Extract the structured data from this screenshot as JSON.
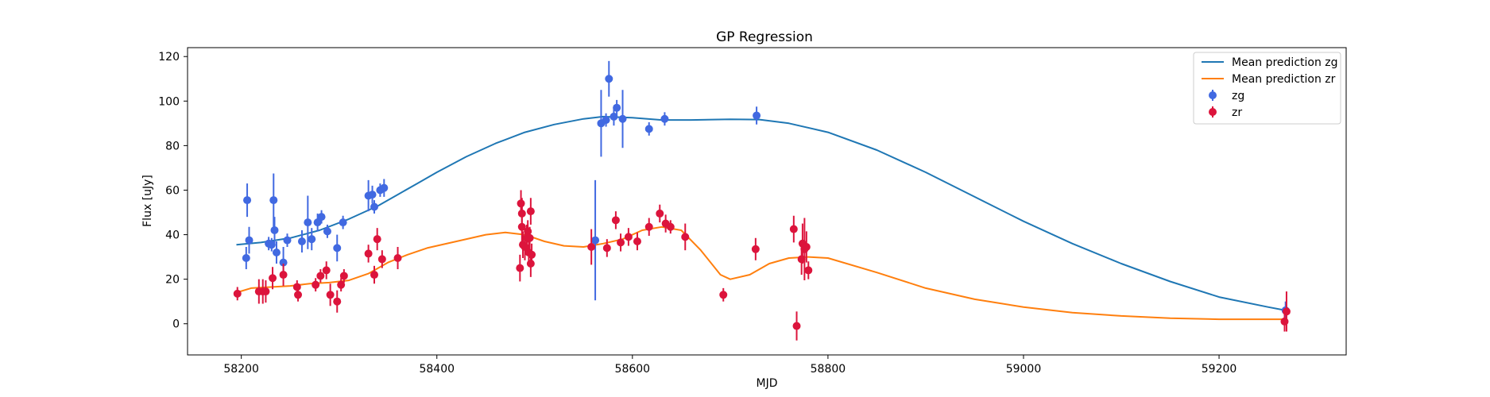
{
  "chart_data": {
    "type": "scatter",
    "title": "GP Regression",
    "xlabel": "MJD",
    "ylabel": "Flux [uJy]",
    "xlim": [
      58145,
      59330
    ],
    "ylim": [
      -14,
      124
    ],
    "xticks": [
      58200,
      58400,
      58600,
      58800,
      59000,
      59200
    ],
    "yticks": [
      0,
      20,
      40,
      60,
      80,
      100,
      120
    ],
    "grid": false,
    "legend_position": "top-right",
    "colors": {
      "zg_line": "#1f77b4",
      "zr_line": "#ff7f0e",
      "zg_points": "#4169e1",
      "zr_points": "#dc143c"
    },
    "series": [
      {
        "name": "Mean prediction zg",
        "kind": "line",
        "x": [
          58195,
          58220,
          58250,
          58280,
          58310,
          58340,
          58360,
          58380,
          58400,
          58430,
          58460,
          58490,
          58520,
          58550,
          58570,
          58600,
          58630,
          58660,
          58700,
          58730,
          58760,
          58800,
          58850,
          58900,
          58950,
          59000,
          59050,
          59100,
          59150,
          59200,
          59250,
          59268
        ],
        "y": [
          35.5,
          36.5,
          38.5,
          42,
          47,
          53,
          58,
          63,
          68,
          75,
          81,
          86,
          89.5,
          92,
          93,
          92.5,
          91.5,
          91.5,
          91.8,
          91.7,
          90,
          86,
          78,
          68,
          57,
          46,
          36,
          27,
          19,
          12,
          7.5,
          6
        ]
      },
      {
        "name": "Mean prediction zr",
        "kind": "line",
        "x": [
          58195,
          58210,
          58230,
          58250,
          58270,
          58290,
          58310,
          58330,
          58350,
          58370,
          58390,
          58420,
          58450,
          58470,
          58490,
          58510,
          58530,
          58550,
          58570,
          58590,
          58610,
          58630,
          58650,
          58670,
          58690,
          58700,
          58720,
          58740,
          58760,
          58780,
          58800,
          58850,
          58900,
          58950,
          59000,
          59050,
          59100,
          59150,
          59200,
          59250,
          59268
        ],
        "y": [
          14,
          16,
          16.5,
          17,
          18,
          18.5,
          19.5,
          22.5,
          27.5,
          31,
          34,
          37,
          40,
          41,
          40,
          37,
          35,
          34.5,
          36,
          38,
          42,
          43.5,
          42,
          33,
          22,
          20,
          22,
          27,
          29.5,
          30,
          29.5,
          23,
          16,
          11,
          7.5,
          5,
          3.5,
          2.5,
          2,
          2,
          2
        ]
      },
      {
        "name": "zg",
        "kind": "errorbar",
        "points": [
          [
            58205,
            29.5,
            5
          ],
          [
            58206,
            55.5,
            7.5
          ],
          [
            58208,
            37.5,
            6
          ],
          [
            58228,
            36,
            3
          ],
          [
            58231,
            35.5,
            3
          ],
          [
            58233,
            55.5,
            12
          ],
          [
            58234,
            42,
            6
          ],
          [
            58236,
            32,
            5
          ],
          [
            58243,
            27.5,
            7
          ],
          [
            58247,
            37.5,
            3
          ],
          [
            58262,
            37,
            5
          ],
          [
            58268,
            45.5,
            12
          ],
          [
            58272,
            38,
            5
          ],
          [
            58278,
            45.5,
            4
          ],
          [
            58282,
            48,
            3
          ],
          [
            58288,
            41.5,
            3
          ],
          [
            58298,
            34,
            6
          ],
          [
            58304,
            45.5,
            3
          ],
          [
            58330,
            57.5,
            7
          ],
          [
            58334,
            58,
            4
          ],
          [
            58336,
            52.5,
            3
          ],
          [
            58342,
            60,
            3
          ],
          [
            58346,
            61,
            4
          ],
          [
            58562,
            37.5,
            27
          ],
          [
            58568,
            90,
            15
          ],
          [
            58573,
            91.5,
            3
          ],
          [
            58576,
            110,
            8
          ],
          [
            58581,
            93,
            4
          ],
          [
            58584,
            97,
            3.5
          ],
          [
            58590,
            92,
            13
          ],
          [
            58617,
            87.5,
            3
          ],
          [
            58633,
            92,
            3
          ],
          [
            58727,
            93.5,
            4
          ],
          [
            59268,
            6,
            4
          ]
        ]
      },
      {
        "name": "zr",
        "kind": "errorbar",
        "points": [
          [
            58196,
            13.5,
            3
          ],
          [
            58218,
            14.5,
            5.5
          ],
          [
            58222,
            14.5,
            5.5
          ],
          [
            58225,
            14.5,
            5
          ],
          [
            58232,
            20.5,
            5
          ],
          [
            58243,
            22,
            5
          ],
          [
            58257,
            16.5,
            3
          ],
          [
            58258,
            13,
            3
          ],
          [
            58276,
            17.5,
            3
          ],
          [
            58281,
            21.5,
            3
          ],
          [
            58287,
            24,
            4
          ],
          [
            58291,
            13,
            5
          ],
          [
            58298,
            10,
            5
          ],
          [
            58302,
            17.5,
            3
          ],
          [
            58305,
            21.5,
            3
          ],
          [
            58330,
            31.5,
            4
          ],
          [
            58336,
            22,
            4
          ],
          [
            58339,
            38,
            5
          ],
          [
            58344,
            29,
            4
          ],
          [
            58360,
            29.5,
            5
          ],
          [
            58485,
            25,
            6
          ],
          [
            58486,
            54,
            6
          ],
          [
            58487,
            43.5,
            9
          ],
          [
            58487,
            49.5,
            7
          ],
          [
            58488,
            35.5,
            6
          ],
          [
            58490,
            34.5,
            6
          ],
          [
            58492,
            38.5,
            6
          ],
          [
            58493,
            41.5,
            5
          ],
          [
            58494,
            32,
            5
          ],
          [
            58495,
            38.5,
            5
          ],
          [
            58496,
            27,
            6
          ],
          [
            58496,
            50.5,
            6
          ],
          [
            58497,
            31,
            5
          ],
          [
            58558,
            34.5,
            8
          ],
          [
            58574,
            34,
            4
          ],
          [
            58583,
            46.5,
            4
          ],
          [
            58588,
            36.5,
            4
          ],
          [
            58596,
            39,
            4
          ],
          [
            58605,
            37,
            4
          ],
          [
            58617,
            43.5,
            4
          ],
          [
            58628,
            49.5,
            4
          ],
          [
            58634,
            45,
            4
          ],
          [
            58639,
            43.5,
            3
          ],
          [
            58654,
            39,
            6
          ],
          [
            58693,
            13,
            3
          ],
          [
            58726,
            33.5,
            5
          ],
          [
            58765,
            42.5,
            6
          ],
          [
            58768,
            -1,
            6.5
          ],
          [
            58773,
            29,
            7
          ],
          [
            58774,
            36,
            9
          ],
          [
            58776,
            33.5,
            14
          ],
          [
            58778,
            34.5,
            7
          ],
          [
            58780,
            24,
            4
          ],
          [
            59267,
            1,
            4.5
          ],
          [
            59269,
            5.5,
            9
          ]
        ]
      }
    ],
    "legend": [
      {
        "label": "Mean prediction zg",
        "marker": "line",
        "series": 0
      },
      {
        "label": "Mean prediction zr",
        "marker": "line",
        "series": 1
      },
      {
        "label": "zg",
        "marker": "errorbar-point",
        "series": 2
      },
      {
        "label": "zr",
        "marker": "errorbar-point",
        "series": 3
      }
    ]
  }
}
